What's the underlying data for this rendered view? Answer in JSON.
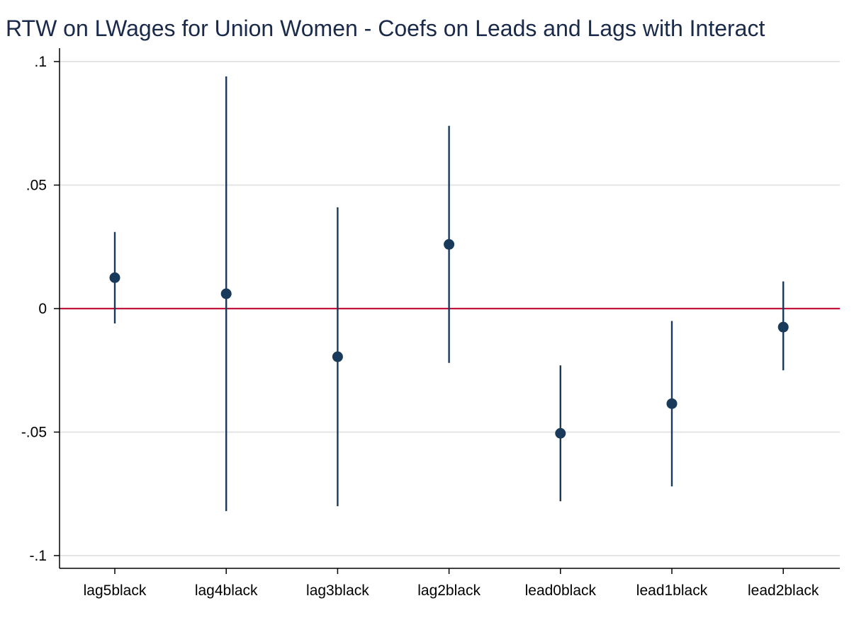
{
  "chart_data": {
    "type": "scatter",
    "title": "RTW on LWages for Union Women - Coefs on Leads and Lags with Interact",
    "xlabel": "",
    "ylabel": "",
    "categories": [
      "lag5black",
      "lag4black",
      "lag3black",
      "lag2black",
      "lead0black",
      "lead1black",
      "lead2black"
    ],
    "series": [
      {
        "estimates": [
          0.0125,
          0.006,
          -0.0195,
          0.026,
          -0.0505,
          -0.0385,
          -0.0075
        ],
        "ci_lower": [
          -0.006,
          -0.082,
          -0.08,
          -0.022,
          -0.078,
          -0.072,
          -0.025
        ],
        "ci_upper": [
          0.031,
          0.094,
          0.041,
          0.074,
          -0.023,
          -0.005,
          0.011
        ]
      }
    ],
    "ylim": [
      -0.105,
      0.105
    ],
    "yticks": [
      0.1,
      0.05,
      0,
      -0.05,
      -0.1
    ],
    "ytick_labels": [
      ".1",
      ".05",
      "0",
      "-.05",
      "-.1"
    ],
    "reference_line": 0,
    "grid": true,
    "colors": {
      "point": "#1a3a5c",
      "ci": "#1a3a5c",
      "reference": "#c0143c",
      "grid": "#e4e4e4",
      "title": "#1a2a4a"
    }
  }
}
